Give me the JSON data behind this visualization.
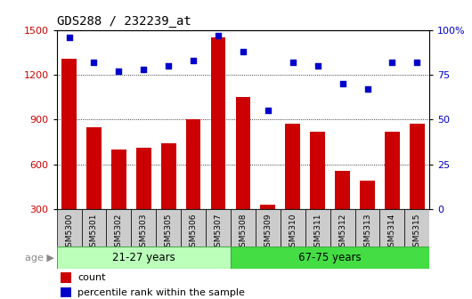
{
  "title": "GDS288 / 232239_at",
  "samples": [
    "GSM5300",
    "GSM5301",
    "GSM5302",
    "GSM5303",
    "GSM5305",
    "GSM5306",
    "GSM5307",
    "GSM5308",
    "GSM5309",
    "GSM5310",
    "GSM5311",
    "GSM5312",
    "GSM5313",
    "GSM5314",
    "GSM5315"
  ],
  "bar_values": [
    1310,
    850,
    700,
    710,
    740,
    900,
    1450,
    1050,
    330,
    870,
    820,
    560,
    490,
    820,
    870
  ],
  "percentile_values": [
    96,
    82,
    77,
    78,
    80,
    83,
    97,
    88,
    55,
    82,
    80,
    70,
    67,
    82,
    82
  ],
  "bar_color": "#cc0000",
  "dot_color": "#0000cc",
  "ylim_left": [
    300,
    1500
  ],
  "ylim_right": [
    0,
    100
  ],
  "yticks_left": [
    300,
    600,
    900,
    1200,
    1500
  ],
  "yticks_right": [
    0,
    25,
    50,
    75,
    100
  ],
  "right_ytick_labels": [
    "0",
    "25",
    "50",
    "75",
    "100%"
  ],
  "grid_values": [
    600,
    900,
    1200
  ],
  "group1_label": "21-27 years",
  "group1_count": 7,
  "group2_label": "67-75 years",
  "group1_color": "#bbffbb",
  "group2_color": "#44dd44",
  "group_edge_color": "#44aa44",
  "age_label": "age",
  "age_arrow": "▶",
  "legend_count_label": "count",
  "legend_pct_label": "percentile rank within the sample",
  "bar_width": 0.6,
  "xtick_bg": "#cccccc"
}
